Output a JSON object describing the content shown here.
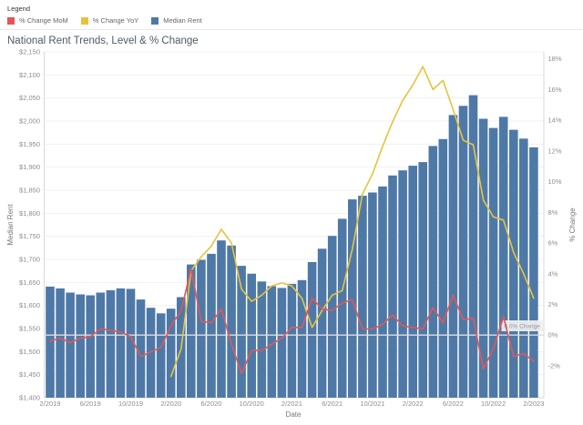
{
  "legend": {
    "title": "Legend",
    "items": [
      {
        "label": "% Change MoM",
        "color": "#e15759"
      },
      {
        "label": "% Change YoY",
        "color": "#e7c33c"
      },
      {
        "label": "Median Rent",
        "color": "#4e79a7"
      }
    ]
  },
  "title": "National Rent Trends, Level & % Change",
  "chart_data": {
    "type": "bar",
    "subtype": "combo-bar-line-dual-axis",
    "x_axis_label": "Date",
    "x": [
      "2/2019",
      "3/2019",
      "4/2019",
      "5/2019",
      "6/2019",
      "7/2019",
      "8/2019",
      "9/2019",
      "10/2019",
      "11/2019",
      "12/2019",
      "1/2020",
      "2/2020",
      "3/2020",
      "4/2020",
      "5/2020",
      "6/2020",
      "7/2020",
      "8/2020",
      "9/2020",
      "10/2020",
      "11/2020",
      "12/2020",
      "1/2021",
      "2/2021",
      "3/2021",
      "4/2021",
      "5/2021",
      "6/2021",
      "7/2021",
      "8/2021",
      "9/2021",
      "10/2021",
      "11/2021",
      "12/2021",
      "1/2022",
      "2/2022",
      "3/2022",
      "4/2022",
      "5/2022",
      "6/2022",
      "7/2022",
      "8/2022",
      "9/2022",
      "10/2022",
      "11/2022",
      "12/2022",
      "1/2023",
      "2/2023"
    ],
    "x_tick_labels": [
      "2/2019",
      "6/2019",
      "10/2019",
      "2/2020",
      "6/2020",
      "10/2020",
      "2/2021",
      "6/2021",
      "10/2021",
      "2/2022",
      "6/2022",
      "10/2022",
      "2/2023"
    ],
    "series": [
      {
        "name": "Median Rent",
        "type": "bar",
        "axis": "left",
        "color": "#4e79a7",
        "values": [
          1641,
          1637,
          1628,
          1624,
          1622,
          1628,
          1633,
          1637,
          1636,
          1613,
          1595,
          1583,
          1593,
          1618,
          1689,
          1699,
          1712,
          1741,
          1730,
          1686,
          1669,
          1652,
          1642,
          1638,
          1647,
          1655,
          1694,
          1723,
          1751,
          1788,
          1830,
          1838,
          1845,
          1858,
          1882,
          1893,
          1903,
          1911,
          1946,
          1961,
          2013,
          2033,
          2056,
          2005,
          1985,
          2009,
          1981,
          1962,
          1943
        ]
      },
      {
        "name": "% Change MoM",
        "type": "line",
        "axis": "right",
        "color": "#e15759",
        "values": [
          -0.4,
          -0.2,
          -0.5,
          -0.2,
          -0.1,
          0.4,
          0.3,
          0.2,
          -0.1,
          -1.4,
          -1.1,
          -0.8,
          0.6,
          1.6,
          4.3,
          0.9,
          0.8,
          1.7,
          -0.6,
          -2.5,
          -1.0,
          -1.0,
          -0.6,
          -0.2,
          0.5,
          0.5,
          2.4,
          1.7,
          1.6,
          2.1,
          2.3,
          0.4,
          0.4,
          0.7,
          1.3,
          0.6,
          0.5,
          0.4,
          1.8,
          0.8,
          2.6,
          1.0,
          1.1,
          -2.2,
          -0.9,
          1.2,
          -1.4,
          -1.2,
          -1.7
        ]
      },
      {
        "name": "% Change YoY",
        "type": "line",
        "axis": "right",
        "color": "#e7c33c",
        "values": [
          null,
          null,
          null,
          null,
          null,
          null,
          null,
          null,
          null,
          null,
          null,
          null,
          -2.7,
          -0.9,
          4.2,
          5.1,
          5.8,
          6.9,
          6.0,
          3.0,
          2.2,
          2.6,
          3.2,
          3.4,
          3.2,
          2.4,
          0.5,
          1.6,
          2.6,
          2.9,
          5.6,
          9.2,
          10.5,
          12.3,
          13.9,
          15.3,
          16.3,
          17.5,
          16.0,
          16.6,
          14.7,
          12.7,
          12.4,
          8.8,
          7.7,
          7.5,
          5.4,
          4.0,
          2.4
        ]
      }
    ],
    "left_axis": {
      "label": "Median Rent",
      "min": 1400,
      "max": 2150,
      "tick_step": 50,
      "format": "$#,##0"
    },
    "right_axis": {
      "label": "% Change",
      "min": -2,
      "max": 18,
      "tick_step": 2,
      "format": "0%"
    },
    "reference_line": {
      "value": 0,
      "label": "0.0% Change"
    },
    "grid": true,
    "legend_position": "top-left"
  }
}
